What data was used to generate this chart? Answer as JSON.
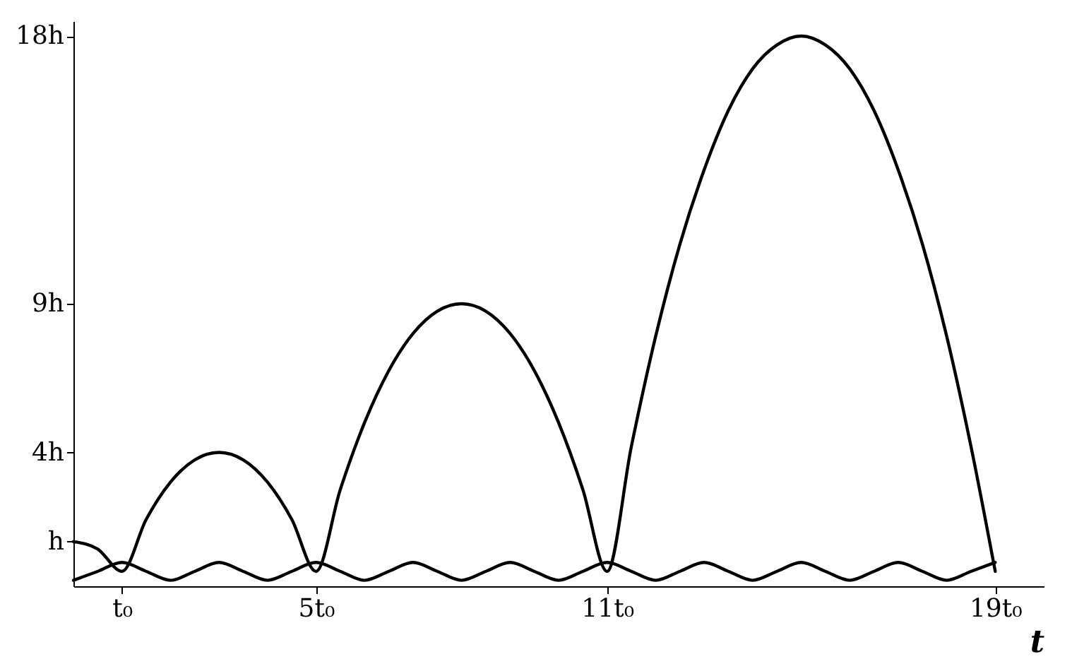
{
  "chart_data": {
    "type": "line",
    "xlabel": "t",
    "xlim": [
      0,
      20
    ],
    "ylim": [
      -0.5,
      18.5
    ],
    "xticks": [
      {
        "value": 1,
        "label": "t₀"
      },
      {
        "value": 5,
        "label": "5t₀"
      },
      {
        "value": 11,
        "label": "11t₀"
      },
      {
        "value": 19,
        "label": "19t₀"
      }
    ],
    "yticks": [
      {
        "value": 1,
        "label": "h"
      },
      {
        "value": 4,
        "label": "4h"
      },
      {
        "value": 9,
        "label": "9h"
      },
      {
        "value": 18,
        "label": "18h"
      }
    ],
    "grid": false,
    "marker": "none",
    "line_style": "solid",
    "series": [
      {
        "color": "#000000",
        "x": [
          0,
          0.5,
          1,
          1.5,
          2,
          2.5,
          3,
          3.5,
          4,
          4.5,
          5,
          5.5,
          6,
          6.5,
          7,
          7.5,
          8,
          8.5,
          9,
          9.5,
          10,
          10.5,
          11,
          11.5,
          12,
          12.5,
          13,
          13.5,
          14,
          14.5,
          15,
          15.5,
          16,
          16.5,
          17,
          17.5,
          18,
          18.5,
          19
        ],
        "values": [
          1,
          0.75,
          0,
          1.75,
          3,
          3.75,
          4,
          3.75,
          3,
          1.75,
          0,
          2.75,
          5,
          6.75,
          8,
          8.75,
          9,
          8.75,
          8,
          6.75,
          5,
          2.75,
          0,
          4.2,
          7.9,
          11,
          13.5,
          15.5,
          16.9,
          17.7,
          18,
          17.7,
          16.9,
          15.5,
          13.5,
          11,
          7.9,
          4.2,
          0
        ]
      },
      {
        "color": "#000000",
        "x": [
          0,
          0.5,
          1,
          1.5,
          2,
          2.5,
          3,
          3.5,
          4,
          4.5,
          5,
          5.5,
          6,
          6.5,
          7,
          7.5,
          8,
          8.5,
          9,
          9.5,
          10,
          10.5,
          11,
          11.5,
          12,
          12.5,
          13,
          13.5,
          14,
          14.5,
          15,
          15.5,
          16,
          16.5,
          17,
          17.5,
          18,
          18.5,
          19
        ],
        "values": [
          -0.3,
          0,
          0.3,
          0,
          -0.3,
          0,
          0.3,
          0,
          -0.3,
          0,
          0.3,
          0,
          -0.3,
          0,
          0.3,
          0,
          -0.3,
          0,
          0.3,
          0,
          -0.3,
          0,
          0.3,
          0,
          -0.3,
          0,
          0.3,
          0,
          -0.3,
          0,
          0.3,
          0,
          -0.3,
          0,
          0.3,
          0,
          -0.3,
          0,
          0.3
        ]
      }
    ]
  }
}
